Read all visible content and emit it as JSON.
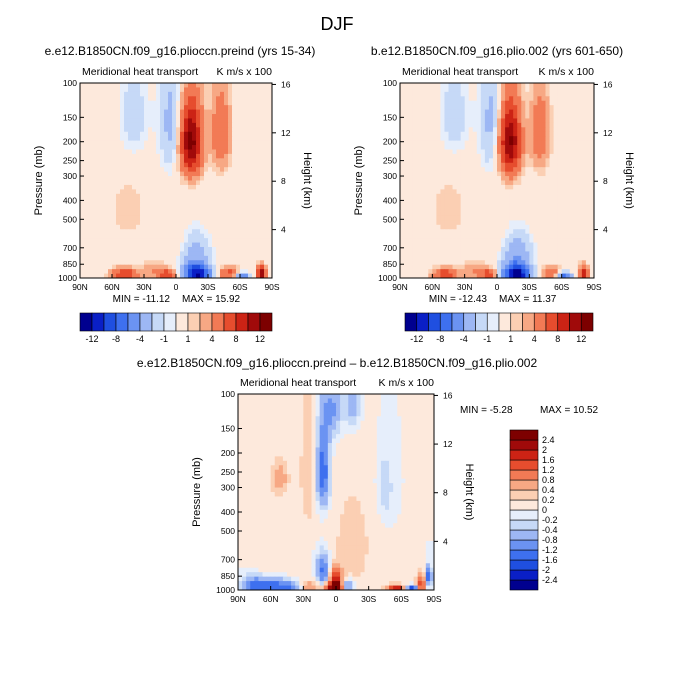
{
  "figure": {
    "season": "DJF"
  },
  "colors": {
    "div": [
      "#00008f",
      "#0a1fc6",
      "#1f4fe0",
      "#3e70ef",
      "#6b93f2",
      "#9db7f4",
      "#c6d9f7",
      "#e6eefb",
      "#fde9dc",
      "#fbcfb3",
      "#f7a884",
      "#f27a55",
      "#e64d2e",
      "#cc2315",
      "#a00a0a",
      "#7d0000"
    ]
  },
  "chart_data": [
    {
      "id": "panel1",
      "type": "heatmap",
      "title": "e.e12.B1850CN.f09_g16.plioccn.preind (yrs 15-34)",
      "subtitle": "Meridional heat transport",
      "units_label": "K m/s x 100",
      "xlabel": "",
      "ylabel": "Pressure (mb)",
      "y2label": "Height (km)",
      "x_ticks": [
        "90N",
        "60N",
        "30N",
        "0",
        "30S",
        "60S",
        "90S"
      ],
      "y_ticks": [
        "100",
        "150",
        "200",
        "250",
        "300",
        "400",
        "500",
        "700",
        "850",
        "1000"
      ],
      "y2_ticks": [
        "16",
        "12",
        "8",
        "4"
      ],
      "min_label": "MIN = -11.12",
      "max_label": "MAX = 15.92",
      "colorbar_labels": [
        "-12",
        "-8",
        "-4",
        "-1",
        "1",
        "4",
        "8",
        "12"
      ],
      "blobs": [
        {
          "lat": -14,
          "p": 200,
          "value": 11.0,
          "sx": 7,
          "sy": 60
        },
        {
          "lat": -42,
          "p": 180,
          "value": 4.0,
          "sx": 6,
          "sy": 60
        },
        {
          "lat": 5,
          "p": 160,
          "value": -2.5,
          "sx": 8,
          "sy": 80
        },
        {
          "lat": 40,
          "p": 150,
          "value": -1.8,
          "sx": 10,
          "sy": 60
        },
        {
          "lat": -20,
          "p": 960,
          "value": -11.0,
          "sx": 8,
          "sy": 70
        },
        {
          "lat": -18,
          "p": 800,
          "value": -4.0,
          "sx": 10,
          "sy": 150
        },
        {
          "lat": -62,
          "p": 985,
          "value": -6.0,
          "sx": 5,
          "sy": 35
        },
        {
          "lat": -50,
          "p": 950,
          "value": 5.0,
          "sx": 6,
          "sy": 50
        },
        {
          "lat": -80,
          "p": 950,
          "value": 9.0,
          "sx": 3,
          "sy": 60
        },
        {
          "lat": 48,
          "p": 955,
          "value": 6.5,
          "sx": 8,
          "sy": 45
        },
        {
          "lat": 20,
          "p": 920,
          "value": 2.0,
          "sx": 8,
          "sy": 60
        },
        {
          "lat": 8,
          "p": 960,
          "value": 6.0,
          "sx": 5,
          "sy": 40
        },
        {
          "lat": -5,
          "p": 800,
          "value": 1.3,
          "sx": 15,
          "sy": 150
        },
        {
          "lat": 0,
          "p": 850,
          "value": -0.8,
          "sx": 12,
          "sy": 120
        },
        {
          "lat": 45,
          "p": 450,
          "value": 0.6,
          "sx": 20,
          "sy": 200
        }
      ]
    },
    {
      "id": "panel2",
      "type": "heatmap",
      "title": "b.e12.B1850CN.f09_g16.plio.002 (yrs 601-650)",
      "subtitle": "Meridional heat transport",
      "units_label": "K m/s x 100",
      "xlabel": "",
      "ylabel": "Pressure (mb)",
      "y2label": "Height (km)",
      "x_ticks": [
        "90N",
        "60N",
        "30N",
        "0",
        "30S",
        "60S",
        "90S"
      ],
      "y_ticks": [
        "100",
        "150",
        "200",
        "250",
        "300",
        "400",
        "500",
        "700",
        "850",
        "1000"
      ],
      "y2_ticks": [
        "16",
        "12",
        "8",
        "4"
      ],
      "min_label": "MIN = -12.43",
      "max_label": "MAX = 11.37",
      "colorbar_labels": [
        "-12",
        "-8",
        "-4",
        "-1",
        "1",
        "4",
        "8",
        "12"
      ],
      "blobs": [
        {
          "lat": -12,
          "p": 200,
          "value": 10.5,
          "sx": 7,
          "sy": 60
        },
        {
          "lat": -40,
          "p": 180,
          "value": 3.5,
          "sx": 6,
          "sy": 60
        },
        {
          "lat": 5,
          "p": 160,
          "value": -2.5,
          "sx": 8,
          "sy": 80
        },
        {
          "lat": 40,
          "p": 150,
          "value": -1.8,
          "sx": 10,
          "sy": 60
        },
        {
          "lat": -18,
          "p": 960,
          "value": -12.0,
          "sx": 8,
          "sy": 70
        },
        {
          "lat": -18,
          "p": 800,
          "value": -4.5,
          "sx": 10,
          "sy": 150
        },
        {
          "lat": -62,
          "p": 985,
          "value": -7.0,
          "sx": 5,
          "sy": 35
        },
        {
          "lat": -50,
          "p": 950,
          "value": 4.5,
          "sx": 6,
          "sy": 50
        },
        {
          "lat": -80,
          "p": 950,
          "value": 7.0,
          "sx": 3,
          "sy": 60
        },
        {
          "lat": 48,
          "p": 955,
          "value": 5.5,
          "sx": 8,
          "sy": 45
        },
        {
          "lat": 20,
          "p": 920,
          "value": 2.0,
          "sx": 8,
          "sy": 60
        },
        {
          "lat": 8,
          "p": 960,
          "value": 5.0,
          "sx": 5,
          "sy": 40
        },
        {
          "lat": -5,
          "p": 800,
          "value": 1.3,
          "sx": 15,
          "sy": 150
        },
        {
          "lat": 0,
          "p": 850,
          "value": -0.8,
          "sx": 12,
          "sy": 120
        },
        {
          "lat": 45,
          "p": 450,
          "value": 0.6,
          "sx": 20,
          "sy": 200
        }
      ]
    },
    {
      "id": "panel3",
      "type": "heatmap",
      "title": "e.e12.B1850CN.f09_g16.plioccn.preind – b.e12.B1850CN.f09_g16.plio.002",
      "subtitle": "Meridional heat transport",
      "units_label": "K m/s x 100",
      "xlabel": "",
      "ylabel": "Pressure (mb)",
      "y2label": "Height (km)",
      "x_ticks": [
        "90N",
        "60N",
        "30N",
        "0",
        "30S",
        "60S",
        "90S"
      ],
      "y_ticks": [
        "100",
        "150",
        "200",
        "250",
        "300",
        "400",
        "500",
        "700",
        "850",
        "1000"
      ],
      "y2_ticks": [
        "16",
        "12",
        "8",
        "4"
      ],
      "min_label": "MIN =   -5.28",
      "max_label": "MAX =   10.52",
      "colorbar_labels": [
        "-2.4",
        "-2",
        "-1.6",
        "-1.2",
        "-0.8",
        "-0.4",
        "-0.2",
        "0",
        "0.2",
        "0.4",
        "0.8",
        "1.2",
        "1.6",
        "2",
        "2.4"
      ],
      "blobs": [
        {
          "lat": 52,
          "p": 270,
          "value": 0.6,
          "sx": 6,
          "sy": 40
        },
        {
          "lat": 12,
          "p": 250,
          "value": -1.6,
          "sx": 4,
          "sy": 80
        },
        {
          "lat": 4,
          "p": 120,
          "value": -0.9,
          "sx": 6,
          "sy": 30
        },
        {
          "lat": -15,
          "p": 110,
          "value": -0.7,
          "sx": 5,
          "sy": 25
        },
        {
          "lat": -45,
          "p": 300,
          "value": -0.4,
          "sx": 5,
          "sy": 80
        },
        {
          "lat": 25,
          "p": 250,
          "value": 0.4,
          "sx": 6,
          "sy": 150
        },
        {
          "lat": -15,
          "p": 600,
          "value": 0.3,
          "sx": 15,
          "sy": 300
        },
        {
          "lat": 60,
          "p": 800,
          "value": 0.2,
          "sx": 15,
          "sy": 150
        },
        {
          "lat": 12,
          "p": 790,
          "value": -1.4,
          "sx": 4,
          "sy": 100
        },
        {
          "lat": 0,
          "p": 880,
          "value": 1.8,
          "sx": 4,
          "sy": 80
        },
        {
          "lat": 2,
          "p": 970,
          "value": 2.5,
          "sx": 6,
          "sy": 40
        },
        {
          "lat": -10,
          "p": 960,
          "value": -1.2,
          "sx": 4,
          "sy": 50
        },
        {
          "lat": -55,
          "p": 980,
          "value": 2.0,
          "sx": 6,
          "sy": 30
        },
        {
          "lat": -70,
          "p": 985,
          "value": -2.0,
          "sx": 4,
          "sy": 25
        },
        {
          "lat": -78,
          "p": 940,
          "value": 1.5,
          "sx": 3,
          "sy": 80
        },
        {
          "lat": -85,
          "p": 850,
          "value": -1.8,
          "sx": 2,
          "sy": 60
        },
        {
          "lat": 55,
          "p": 960,
          "value": -1.6,
          "sx": 12,
          "sy": 60
        },
        {
          "lat": 75,
          "p": 950,
          "value": -1.2,
          "sx": 8,
          "sy": 80
        },
        {
          "lat": 25,
          "p": 970,
          "value": 0.8,
          "sx": 6,
          "sy": 50
        },
        {
          "lat": 40,
          "p": 980,
          "value": -0.6,
          "sx": 6,
          "sy": 30
        }
      ]
    }
  ]
}
